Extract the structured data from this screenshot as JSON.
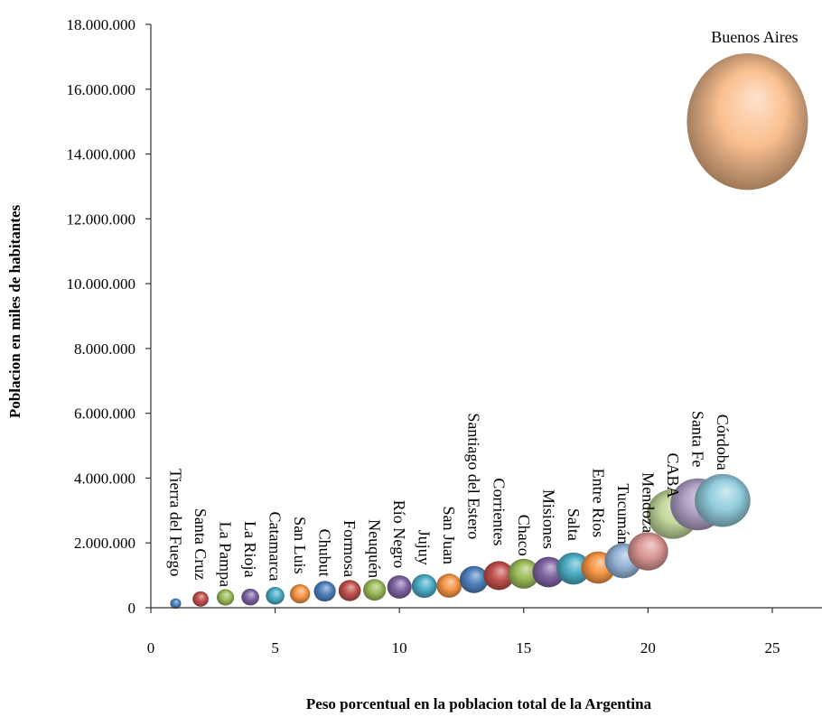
{
  "chart_data": {
    "type": "scatter",
    "xlabel": "Peso porcentual en la poblacion total de la Argentina",
    "ylabel": "Poblacion en miles de habitantes",
    "xlim": [
      0,
      27
    ],
    "ylim": [
      0,
      18000000
    ],
    "x_ticks": [
      "0",
      "5",
      "10",
      "15",
      "20",
      "25"
    ],
    "y_ticks": [
      "0",
      "2.000.000",
      "4.000.000",
      "6.000.000",
      "8.000.000",
      "10.000.000",
      "12.000.000",
      "14.000.000",
      "16.000.000",
      "18.000.000"
    ],
    "grid": false,
    "legend": "none",
    "points": [
      {
        "label": "Tierra del Fuego",
        "x": 1,
        "y": 130000,
        "size": 127000,
        "color": "#4f81bd"
      },
      {
        "label": "Santa Cruz",
        "x": 2,
        "y": 270000,
        "size": 274000,
        "color": "#c0504d"
      },
      {
        "label": "La Pampa",
        "x": 3,
        "y": 320000,
        "size": 319000,
        "color": "#9bbb59"
      },
      {
        "label": "La Rioja",
        "x": 4,
        "y": 330000,
        "size": 334000,
        "color": "#8064a2"
      },
      {
        "label": "Catamarca",
        "x": 5,
        "y": 370000,
        "size": 368000,
        "color": "#4bacc6"
      },
      {
        "label": "San Luis",
        "x": 6,
        "y": 430000,
        "size": 432000,
        "color": "#f79646"
      },
      {
        "label": "Chubut",
        "x": 7,
        "y": 510000,
        "size": 509000,
        "color": "#4f81bd"
      },
      {
        "label": "Formosa",
        "x": 8,
        "y": 530000,
        "size": 530000,
        "color": "#c0504d"
      },
      {
        "label": "Neuquén",
        "x": 9,
        "y": 550000,
        "size": 551000,
        "color": "#9bbb59"
      },
      {
        "label": "Río Negro",
        "x": 10,
        "y": 640000,
        "size": 638000,
        "color": "#8064a2"
      },
      {
        "label": "Jujuy",
        "x": 11,
        "y": 670000,
        "size": 673000,
        "color": "#4bacc6"
      },
      {
        "label": "San Juan",
        "x": 12,
        "y": 680000,
        "size": 681000,
        "color": "#f79646"
      },
      {
        "label": "Santiago del Estero",
        "x": 13,
        "y": 870000,
        "size": 874000,
        "color": "#4f81bd"
      },
      {
        "label": "Corrientes",
        "x": 14,
        "y": 990000,
        "size": 992000,
        "color": "#c0504d"
      },
      {
        "label": "Chaco",
        "x": 15,
        "y": 1050000,
        "size": 1055000,
        "color": "#9bbb59"
      },
      {
        "label": "Misiones",
        "x": 16,
        "y": 1100000,
        "size": 1101000,
        "color": "#8064a2"
      },
      {
        "label": "Salta",
        "x": 17,
        "y": 1210000,
        "size": 1214000,
        "color": "#4bacc6"
      },
      {
        "label": "Entre Ríos",
        "x": 18,
        "y": 1240000,
        "size": 1236000,
        "color": "#f79646"
      },
      {
        "label": "Tucumán",
        "x": 19,
        "y": 1450000,
        "size": 1448000,
        "color": "#95b3d7"
      },
      {
        "label": "Mendoza",
        "x": 20,
        "y": 1740000,
        "size": 1739000,
        "color": "#d99694"
      },
      {
        "label": "CABA",
        "x": 21,
        "y": 2890000,
        "size": 2890000,
        "color": "#c3d69b"
      },
      {
        "label": "Santa Fe",
        "x": 22,
        "y": 3190000,
        "size": 3195000,
        "color": "#b2a1c7"
      },
      {
        "label": "Córdoba",
        "x": 23,
        "y": 3310000,
        "size": 3308000,
        "color": "#93cddd"
      },
      {
        "label": "Buenos Aires",
        "x": 24,
        "y": 15000000,
        "size": 15625000,
        "color": "#fabf8f"
      }
    ]
  }
}
